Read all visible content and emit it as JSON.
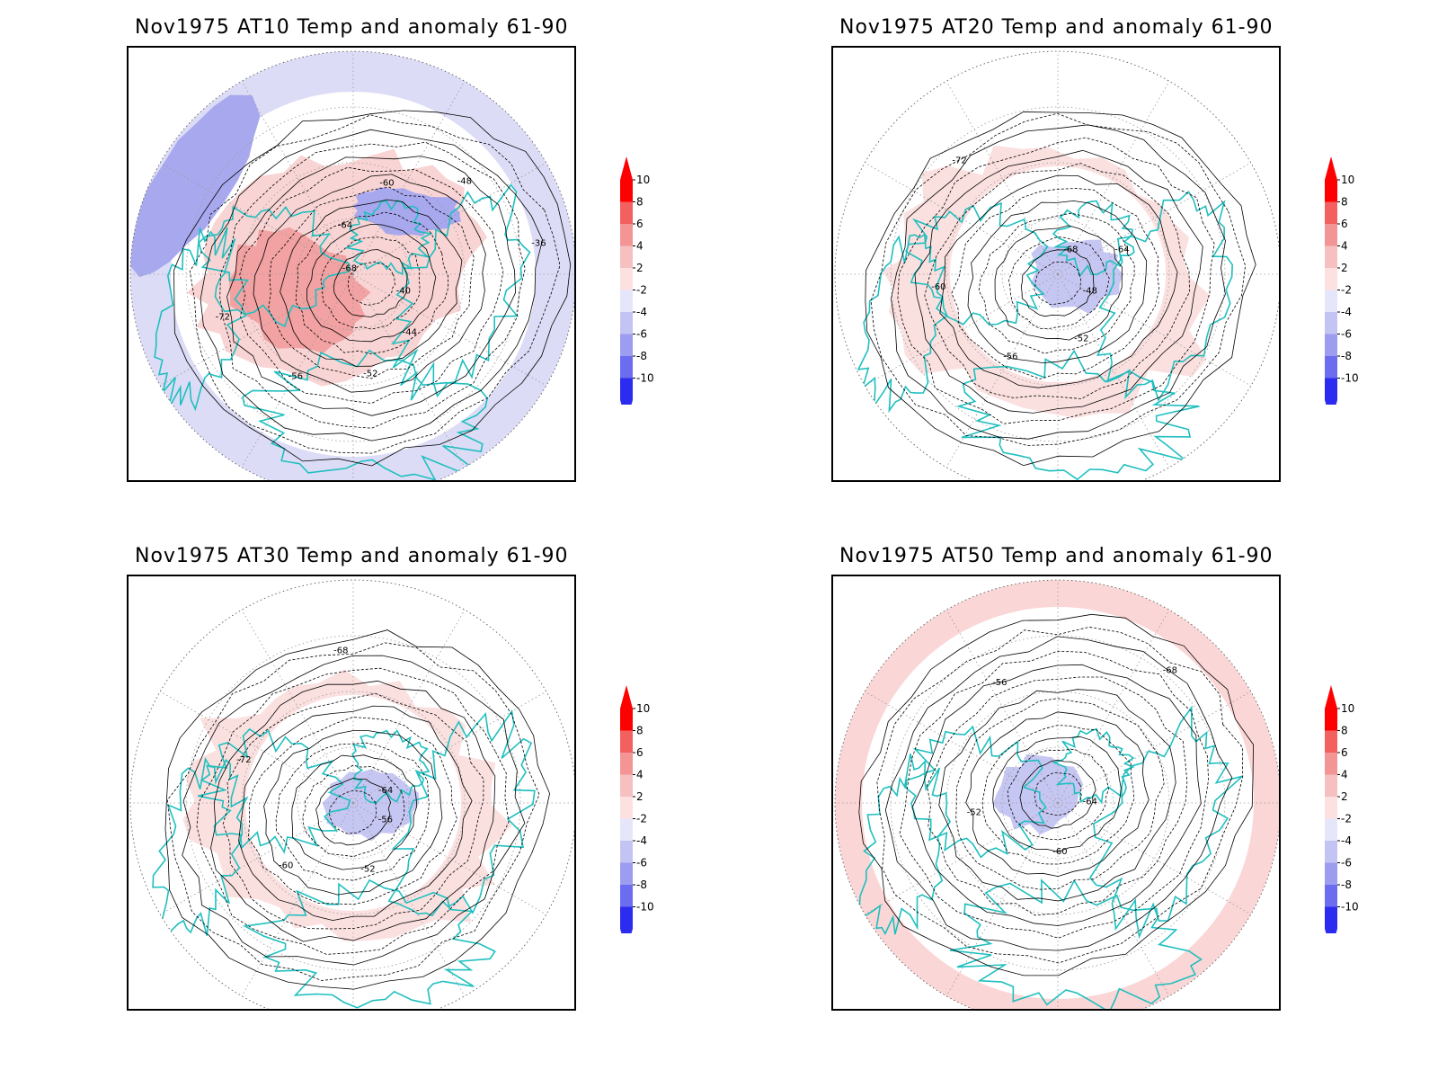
{
  "panels": [
    {
      "id": "at10",
      "title": "Nov1975 AT10 Temp and anomaly 61-90",
      "contour_labels": [
        "-40",
        "-44",
        "-52",
        "-56",
        "-72",
        "-68",
        "-64",
        "-60",
        "-48",
        "-36"
      ],
      "anomaly_style": "strong"
    },
    {
      "id": "at20",
      "title": "Nov1975 AT20 Temp and anomaly 61-90",
      "contour_labels": [
        "-48",
        "-52",
        "-56",
        "-60",
        "-72",
        "-68",
        "-64"
      ],
      "anomaly_style": "mild"
    },
    {
      "id": "at30",
      "title": "Nov1975 AT30 Temp and anomaly 61-90",
      "contour_labels": [
        "-56",
        "-52",
        "-60",
        "-72",
        "-68",
        "-64"
      ],
      "anomaly_style": "mild"
    },
    {
      "id": "at50",
      "title": "Nov1975 AT50 Temp and anomaly 61-90",
      "contour_labels": [
        "-64",
        "-60",
        "-52",
        "-56",
        "-68"
      ],
      "anomaly_style": "ring"
    }
  ],
  "colorbar": {
    "labels": [
      "10",
      "8",
      "6",
      "4",
      "2",
      "-2",
      "-4",
      "-6",
      "-8",
      "-10"
    ],
    "colors": [
      "#ff0000",
      "#f26060",
      "#f39595",
      "#f6c0c0",
      "#fde1e1",
      "#e6e6fb",
      "#c4c4f4",
      "#9c9cf0",
      "#6c6cf0",
      "#2c2cf0"
    ]
  },
  "colors": {
    "coastline": "#20bfbf",
    "contour": "#000000",
    "grid": "#9a9a9a"
  }
}
